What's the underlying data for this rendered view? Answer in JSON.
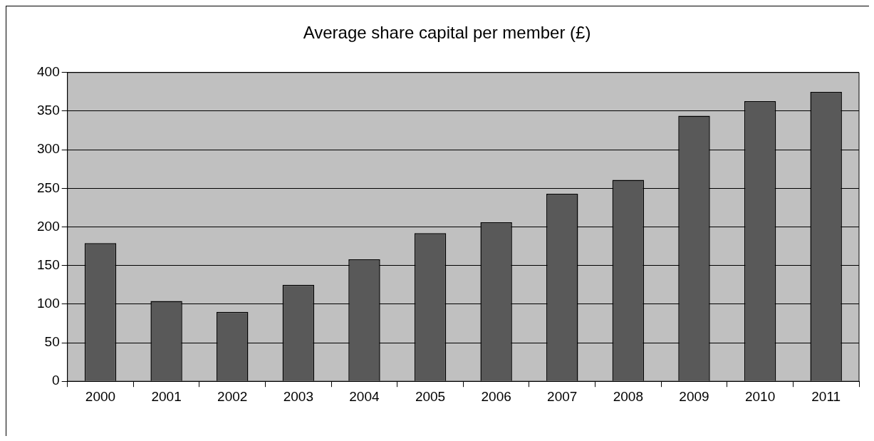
{
  "chart_data": {
    "type": "bar",
    "title": "Average share capital per member (£)",
    "categories": [
      "2000",
      "2001",
      "2002",
      "2003",
      "2004",
      "2005",
      "2006",
      "2007",
      "2008",
      "2009",
      "2010",
      "2011"
    ],
    "values": [
      179,
      104,
      90,
      125,
      158,
      192,
      206,
      243,
      261,
      344,
      363,
      375
    ],
    "color": "#595959",
    "ylim": [
      0,
      400
    ],
    "yticks": [
      0,
      50,
      100,
      150,
      200,
      250,
      300,
      350,
      400
    ],
    "grid": "y",
    "legend": false
  }
}
